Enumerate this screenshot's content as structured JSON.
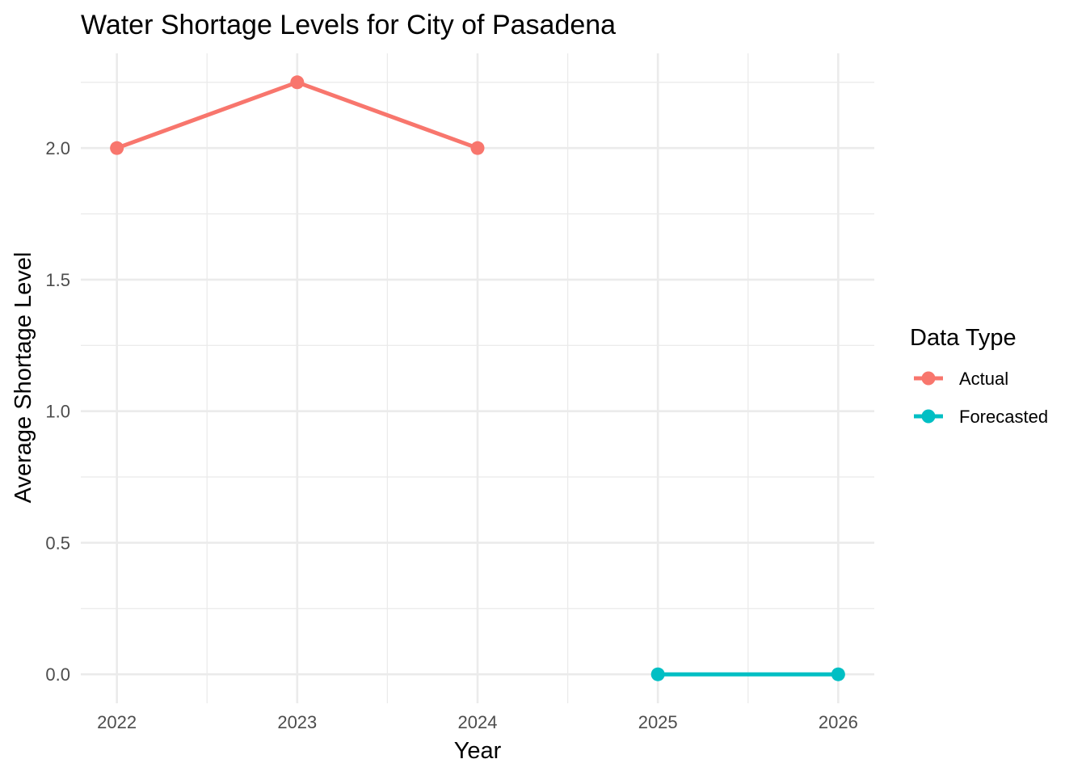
{
  "chart_data": {
    "type": "line",
    "title": "Water Shortage Levels for City of Pasadena",
    "xlabel": "Year",
    "ylabel": "Average Shortage Level",
    "x_ticks": [
      2022,
      2023,
      2024,
      2025,
      2026
    ],
    "x_tick_labels": [
      "2022",
      "2023",
      "2024",
      "2025",
      "2026"
    ],
    "y_ticks": [
      0.0,
      0.5,
      1.0,
      1.5,
      2.0
    ],
    "y_tick_labels": [
      "0.0",
      "0.5",
      "1.0",
      "1.5",
      "2.0"
    ],
    "xlim": [
      2021.8,
      2026.2
    ],
    "ylim": [
      -0.11,
      2.36
    ],
    "grid": true,
    "legend": {
      "title": "Data Type",
      "placement": "right"
    },
    "series": [
      {
        "name": "Actual",
        "color": "#F8766D",
        "points": [
          {
            "x": 2022,
            "y": 2.0
          },
          {
            "x": 2023,
            "y": 2.25
          },
          {
            "x": 2024,
            "y": 2.0
          }
        ]
      },
      {
        "name": "Forecasted",
        "color": "#00BFC4",
        "points": [
          {
            "x": 2025,
            "y": 0.0
          },
          {
            "x": 2026,
            "y": 0.0
          }
        ]
      }
    ]
  }
}
